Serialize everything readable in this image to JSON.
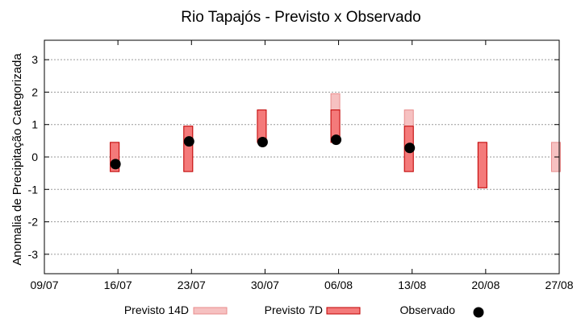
{
  "chart_data": {
    "type": "range-bar",
    "title": "Rio Tapajós - Previsto x Observado",
    "ylabel": "Anomalia de Precipitação Categorizada",
    "xlabel": "",
    "ylim": [
      -3.6,
      3.6
    ],
    "yticks": [
      "-3",
      "-2",
      "-1",
      "0",
      "1",
      "2",
      "3"
    ],
    "yticks_values": [
      -3,
      -2,
      -1,
      0,
      1,
      2,
      3
    ],
    "x_start": "2024-07-09",
    "xlim_dates": [
      "2024-07-09",
      "2024-08-27"
    ],
    "xtick_dates": [
      "2024-07-09",
      "2024-07-16",
      "2024-07-23",
      "2024-07-30",
      "2024-08-06",
      "2024-08-13",
      "2024-08-20",
      "2024-08-27"
    ],
    "xticks": [
      "09/07",
      "16/07",
      "23/07",
      "30/07",
      "06/08",
      "13/08",
      "20/08",
      "27/08"
    ],
    "grid": true,
    "legend_position": "bottom",
    "series": [
      {
        "name": "Previsto 14D",
        "kind": "range",
        "color": "#f6c1c1",
        "border": "#e88c8c",
        "points": [
          {
            "date": "2024-07-16",
            "low": -0.45,
            "high": 0.45
          },
          {
            "date": "2024-07-23",
            "low": -0.45,
            "high": 0.95
          },
          {
            "date": "2024-07-30",
            "low": 0.45,
            "high": 1.45
          },
          {
            "date": "2024-08-06",
            "low": 0.45,
            "high": 1.95
          },
          {
            "date": "2024-08-13",
            "low": -0.45,
            "high": 1.45
          },
          {
            "date": "2024-08-20",
            "low": -0.95,
            "high": 0.45
          },
          {
            "date": "2024-08-27",
            "low": -0.45,
            "high": 0.45
          }
        ]
      },
      {
        "name": "Previsto 7D",
        "kind": "range",
        "color": "#f47a7a",
        "border": "#c00000",
        "points": [
          {
            "date": "2024-07-16",
            "low": -0.45,
            "high": 0.45
          },
          {
            "date": "2024-07-23",
            "low": -0.45,
            "high": 0.95
          },
          {
            "date": "2024-07-30",
            "low": 0.45,
            "high": 1.45
          },
          {
            "date": "2024-08-06",
            "low": 0.45,
            "high": 1.45
          },
          {
            "date": "2024-08-13",
            "low": -0.45,
            "high": 0.95
          },
          {
            "date": "2024-08-20",
            "low": -0.95,
            "high": 0.45
          }
        ]
      },
      {
        "name": "Observado",
        "kind": "point",
        "color": "#000000",
        "points": [
          {
            "date": "2024-07-16",
            "value": -0.22
          },
          {
            "date": "2024-07-23",
            "value": 0.48
          },
          {
            "date": "2024-07-30",
            "value": 0.46
          },
          {
            "date": "2024-08-06",
            "value": 0.53
          },
          {
            "date": "2024-08-13",
            "value": 0.28
          }
        ]
      }
    ]
  }
}
